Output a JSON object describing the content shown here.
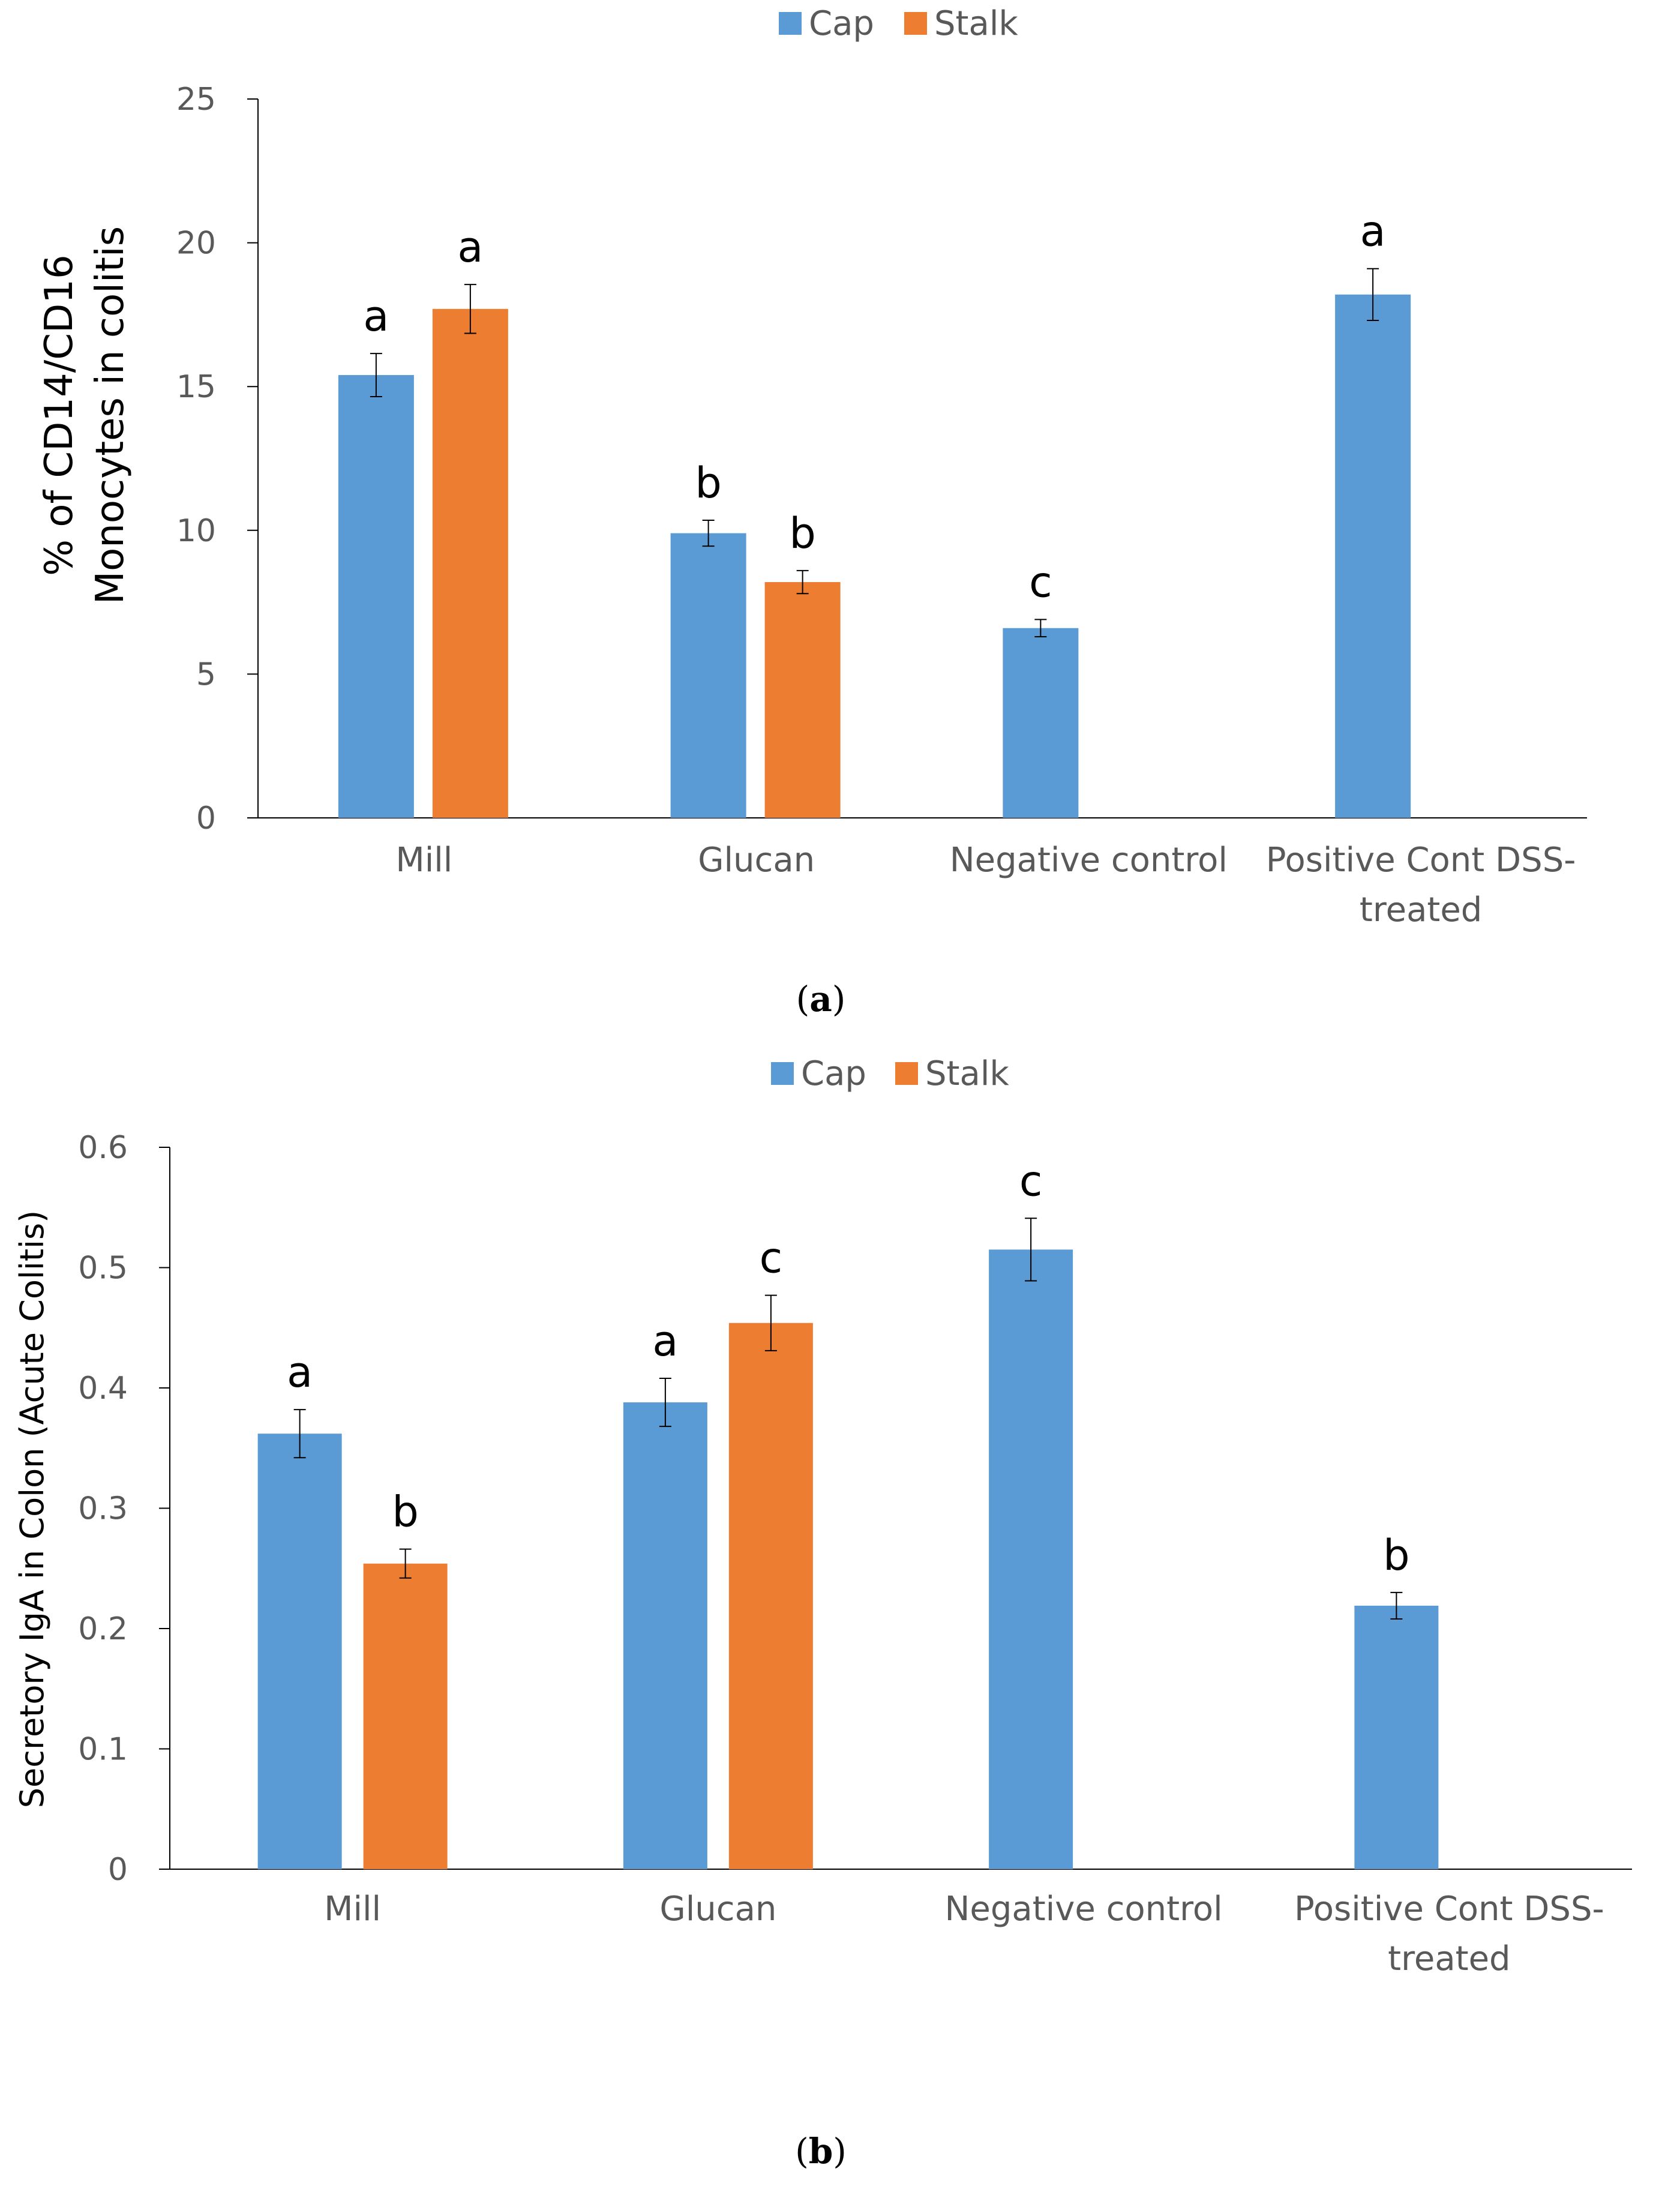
{
  "colors": {
    "cap": "#5B9BD5",
    "stalk": "#ED7D31"
  },
  "chart_data": [
    {
      "type": "bar",
      "panel": "a",
      "caption_open": "(",
      "caption_letter": "a",
      "caption_close": ")",
      "ylabel_line1": "% of CD14/CD16",
      "ylabel_line2": "Monocytes in colitis",
      "ylim": [
        0,
        25
      ],
      "yticks": [
        "0",
        "5",
        "10",
        "15",
        "20",
        "25"
      ],
      "ytick_values": [
        0,
        5,
        10,
        15,
        20,
        25
      ],
      "categories": [
        [
          "Mill"
        ],
        [
          "Glucan"
        ],
        [
          "Negative control"
        ],
        [
          "Positive Cont DSS-",
          "treated"
        ]
      ],
      "legend": [
        "Cap",
        "Stalk"
      ],
      "series": [
        {
          "name": "Cap",
          "values": [
            15.4,
            9.9,
            6.6,
            18.2
          ],
          "errors": [
            0.75,
            0.45,
            0.3,
            0.9
          ],
          "labels": [
            "a",
            "b",
            "c",
            "a"
          ]
        },
        {
          "name": "Stalk",
          "values": [
            17.7,
            8.2,
            null,
            null
          ],
          "errors": [
            0.85,
            0.4,
            null,
            null
          ],
          "labels": [
            "a",
            "b",
            null,
            null
          ]
        }
      ]
    },
    {
      "type": "bar",
      "panel": "b",
      "caption_open": "(",
      "caption_letter": "b",
      "caption_close": ")",
      "ylabel_line1": "Secretory IgA in Colon (Acute Colitis)",
      "ylabel_line2": "",
      "ylim": [
        0,
        0.6
      ],
      "yticks": [
        "0",
        "0.1",
        "0.2",
        "0.3",
        "0.4",
        "0.5",
        "0.6"
      ],
      "ytick_values": [
        0,
        0.1,
        0.2,
        0.3,
        0.4,
        0.5,
        0.6
      ],
      "categories": [
        [
          "Mill"
        ],
        [
          "Glucan"
        ],
        [
          "Negative control"
        ],
        [
          "Positive Cont DSS-",
          "treated"
        ]
      ],
      "legend": [
        "Cap",
        "Stalk"
      ],
      "series": [
        {
          "name": "Cap",
          "values": [
            0.362,
            0.388,
            0.515,
            0.219
          ],
          "errors": [
            0.02,
            0.02,
            0.026,
            0.011
          ],
          "labels": [
            "a",
            "a",
            "c",
            "b"
          ]
        },
        {
          "name": "Stalk",
          "values": [
            0.254,
            0.454,
            null,
            null
          ],
          "errors": [
            0.012,
            0.023,
            null,
            null
          ],
          "labels": [
            "b",
            "c",
            null,
            null
          ]
        }
      ]
    }
  ]
}
